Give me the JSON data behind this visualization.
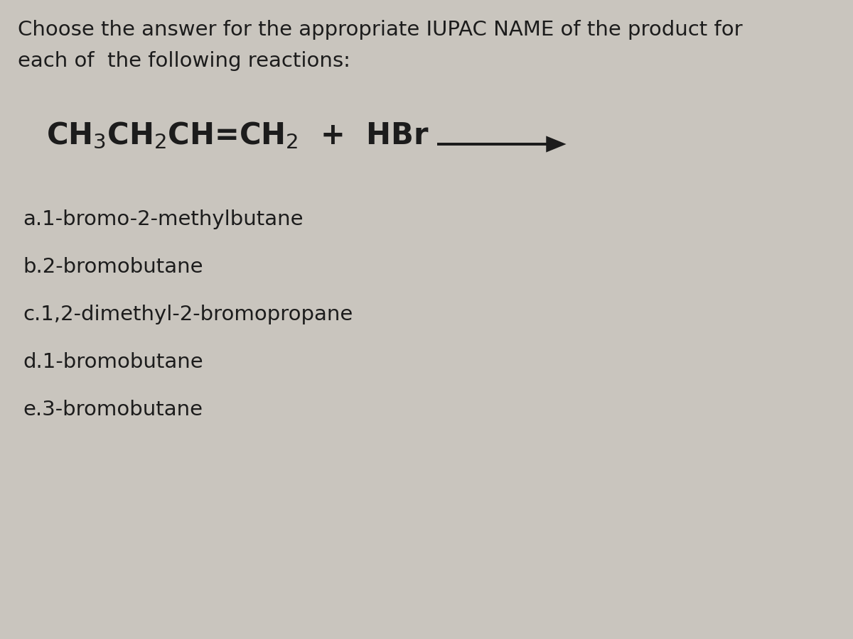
{
  "background_color": "#c9c5be",
  "title_line1": "Choose the answer for the appropriate IUPAC NAME of the product for",
  "title_line2": "each of  the following reactions:",
  "options": [
    "a.1-bromo-2-methylbutane",
    "b.2-bromobutane",
    "c.1,2-dimethyl-2-bromopropane",
    "d.1-bromobutane",
    "e.3-bromobutane"
  ],
  "title_fontsize": 21,
  "reaction_fontsize": 30,
  "option_fontsize": 21,
  "text_color": "#1c1c1c",
  "arrow_color": "#1c1c1c",
  "fig_width": 12.0,
  "fig_height": 9.0,
  "dpi": 100
}
